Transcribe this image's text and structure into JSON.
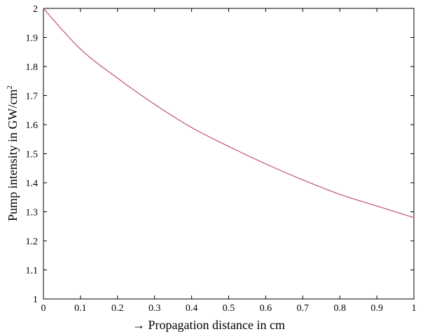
{
  "chart_data": {
    "type": "line",
    "title": "",
    "xlabel": "→ Propagation distance in cm",
    "ylabel_main": "Pump intensity in GW/cm",
    "ylabel_sup": "2",
    "xlim": [
      0,
      1
    ],
    "ylim": [
      1,
      2
    ],
    "xticks": [
      "0",
      "0.1",
      "0.2",
      "0.3",
      "0.4",
      "0.5",
      "0.6",
      "0.7",
      "0.8",
      "0.9",
      "1"
    ],
    "yticks": [
      "1",
      "1.1",
      "1.2",
      "1.3",
      "1.4",
      "1.5",
      "1.6",
      "1.7",
      "1.8",
      "1.9",
      "2"
    ],
    "grid": false,
    "series": [
      {
        "color": "#c05070",
        "x": [
          0,
          0.1,
          0.2,
          0.3,
          0.4,
          0.5,
          0.6,
          0.7,
          0.8,
          0.9,
          1.0
        ],
        "y": [
          2.0,
          1.86,
          1.76,
          1.67,
          1.59,
          1.525,
          1.465,
          1.41,
          1.36,
          1.32,
          1.28
        ]
      }
    ]
  }
}
